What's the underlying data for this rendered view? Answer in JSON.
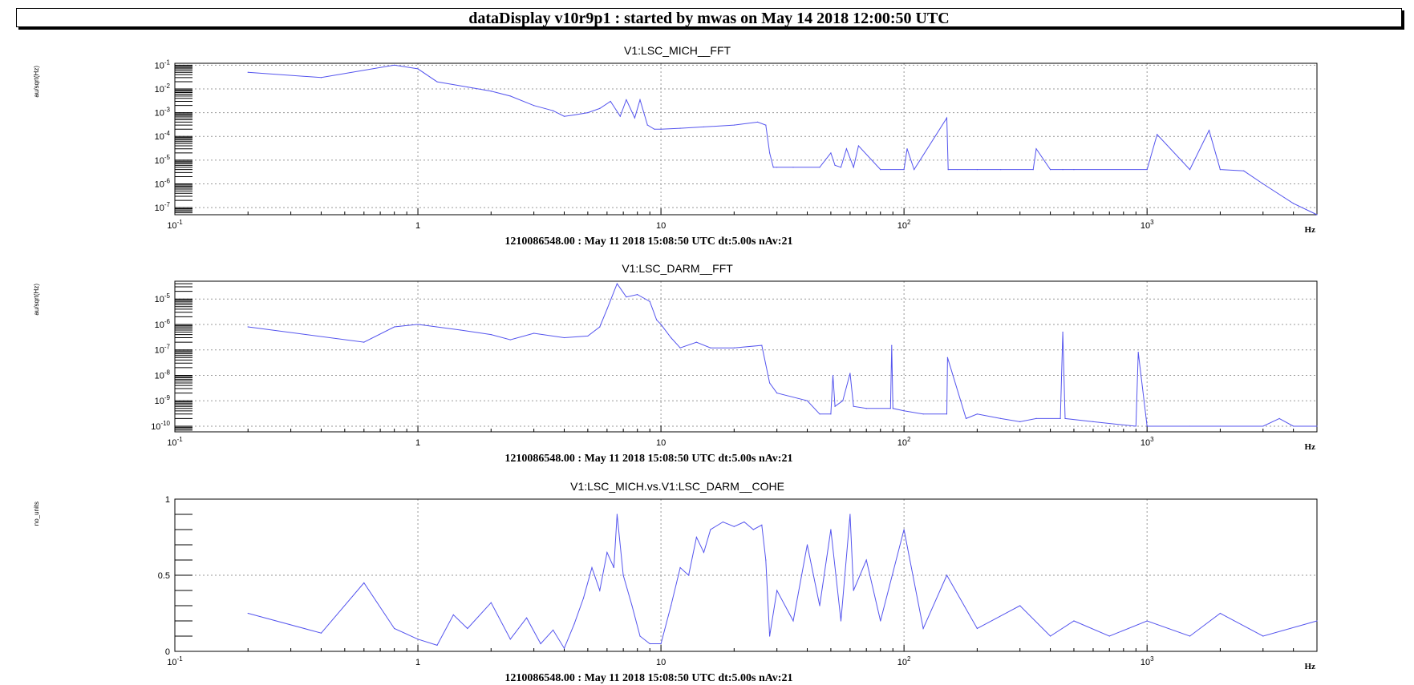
{
  "window": {
    "title": "dataDisplay v10r9p1 : started by mwas on May 14 2018 12:00:50 UTC"
  },
  "colors": {
    "trace": "#5555ee",
    "grid": "#999999",
    "axis": "#000000"
  },
  "chart_data": [
    {
      "type": "line",
      "title": "V1:LSC_MICH__FFT",
      "ylabel": "au/sqrt(Hz)",
      "xlabel": "Hz",
      "footer": "1210086548.00 : May 11 2018 15:08:50 UTC dt:5.00s nAv:21",
      "xscale": "log",
      "yscale": "log",
      "xlim": [
        0.1,
        5000
      ],
      "ylim": [
        5e-08,
        0.12
      ],
      "xticks": [
        {
          "base": "10",
          "exp": "-1"
        },
        {
          "label": "1"
        },
        {
          "label": "10"
        },
        {
          "base": "10",
          "exp": "2"
        },
        {
          "base": "10",
          "exp": "3"
        }
      ],
      "yticks": [
        {
          "base": "10",
          "exp": "-1"
        },
        {
          "base": "10",
          "exp": "-2"
        },
        {
          "base": "10",
          "exp": "-3"
        },
        {
          "base": "10",
          "exp": "-4"
        },
        {
          "base": "10",
          "exp": "-5"
        },
        {
          "base": "10",
          "exp": "-6"
        },
        {
          "base": "10",
          "exp": "-7"
        }
      ],
      "grid": true,
      "series": [
        {
          "x": [
            0.2,
            0.4,
            0.8,
            1.0,
            1.2,
            1.6,
            2.0,
            2.4,
            3.0,
            3.6,
            4.0,
            4.4,
            5.0,
            5.6,
            6.2,
            6.8,
            7.2,
            7.8,
            8.2,
            8.8,
            9.4,
            10,
            12,
            15,
            20,
            25,
            27,
            28,
            29,
            30,
            35,
            45,
            50,
            52,
            55,
            58,
            62,
            65,
            80,
            100,
            103,
            110,
            150,
            152,
            200,
            250,
            340,
            350,
            400,
            450,
            500,
            1000,
            1100,
            1500,
            1800,
            2000,
            2500,
            3000,
            4000,
            5000
          ],
          "y": [
            0.05,
            0.03,
            0.1,
            0.07,
            0.02,
            0.012,
            0.008,
            0.005,
            0.002,
            0.0012,
            0.0007,
            0.0008,
            0.001,
            0.0015,
            0.003,
            0.0007,
            0.0035,
            0.0006,
            0.0035,
            0.0003,
            0.0002,
            0.0002,
            0.00022,
            0.00025,
            0.0003,
            0.0004,
            0.0003,
            2e-05,
            5e-06,
            5e-06,
            5e-06,
            5e-06,
            2e-05,
            6e-06,
            5e-06,
            3e-05,
            5e-06,
            4e-05,
            4e-06,
            4e-06,
            3e-05,
            4e-06,
            0.0006,
            4e-06,
            4e-06,
            4e-06,
            4e-06,
            3e-05,
            4e-06,
            4e-06,
            4e-06,
            4e-06,
            0.00012,
            4e-06,
            0.00018,
            4e-06,
            3.5e-06,
            1e-06,
            1.5e-07,
            5e-08
          ]
        }
      ]
    },
    {
      "type": "line",
      "title": "V1:LSC_DARM__FFT",
      "ylabel": "au/sqrt(Hz)",
      "xlabel": "Hz",
      "footer": "1210086548.00 : May 11 2018 15:08:50 UTC dt:5.00s nAv:21",
      "xscale": "log",
      "yscale": "log",
      "xlim": [
        0.1,
        5000
      ],
      "ylim": [
        6e-11,
        5e-05
      ],
      "xticks": [
        {
          "base": "10",
          "exp": "-1"
        },
        {
          "label": "1"
        },
        {
          "label": "10"
        },
        {
          "base": "10",
          "exp": "2"
        },
        {
          "base": "10",
          "exp": "3"
        }
      ],
      "yticks": [
        {
          "base": "10",
          "exp": "-5"
        },
        {
          "base": "10",
          "exp": "-6"
        },
        {
          "base": "10",
          "exp": "-7"
        },
        {
          "base": "10",
          "exp": "-8"
        },
        {
          "base": "10",
          "exp": "-9"
        },
        {
          "base": "10",
          "exp": "-10"
        }
      ],
      "grid": true,
      "series": [
        {
          "x": [
            0.2,
            0.6,
            0.8,
            1.0,
            1.5,
            2.0,
            2.4,
            3.0,
            4.0,
            5.0,
            5.6,
            6.0,
            6.6,
            7.2,
            8.0,
            9.0,
            9.6,
            10,
            11,
            12,
            14,
            16,
            20,
            26,
            28,
            30,
            40,
            45,
            50,
            51,
            52,
            56,
            60,
            62,
            70,
            88,
            89,
            90,
            100,
            120,
            150,
            151,
            180,
            200,
            250,
            300,
            350,
            440,
            450,
            460,
            600,
            900,
            920,
            1000,
            1500,
            2000,
            3000,
            3500,
            4000,
            5000
          ],
          "y": [
            8e-07,
            2e-07,
            8e-07,
            1e-06,
            6e-07,
            4e-07,
            2.5e-07,
            4.5e-07,
            3e-07,
            3.5e-07,
            8e-07,
            4e-06,
            4e-05,
            1.2e-05,
            1.5e-05,
            8e-06,
            1.5e-06,
            1e-06,
            3e-07,
            1.2e-07,
            2e-07,
            1.2e-07,
            1.2e-07,
            1.5e-07,
            5e-09,
            2e-09,
            1e-09,
            3e-10,
            3e-10,
            1e-08,
            6e-10,
            1e-09,
            1.2e-08,
            6e-10,
            5e-10,
            5e-10,
            1.5e-07,
            5e-10,
            4e-10,
            3e-10,
            3e-10,
            5e-08,
            2e-10,
            3e-10,
            2e-10,
            1.5e-10,
            2e-10,
            2e-10,
            5e-07,
            2e-10,
            1.5e-10,
            1e-10,
            8e-08,
            1e-10,
            1e-10,
            1e-10,
            1e-10,
            2e-10,
            1e-10,
            1e-10
          ]
        }
      ]
    },
    {
      "type": "line",
      "title": "V1:LSC_MICH.vs.V1:LSC_DARM__COHE",
      "ylabel": "no_units",
      "xlabel": "Hz",
      "footer": "1210086548.00 : May 11 2018 15:08:50 UTC dt:5.00s nAv:21",
      "xscale": "log",
      "yscale": "linear",
      "xlim": [
        0.1,
        5000
      ],
      "ylim": [
        0,
        1
      ],
      "xticks": [
        {
          "base": "10",
          "exp": "-1"
        },
        {
          "label": "1"
        },
        {
          "label": "10"
        },
        {
          "base": "10",
          "exp": "2"
        },
        {
          "base": "10",
          "exp": "3"
        }
      ],
      "yticks": [
        {
          "label": "1"
        },
        {
          "label": "0.5"
        },
        {
          "label": "0"
        }
      ],
      "grid": true,
      "series": [
        {
          "x": [
            0.2,
            0.4,
            0.6,
            0.8,
            1.0,
            1.2,
            1.4,
            1.6,
            2.0,
            2.4,
            2.8,
            3.2,
            3.6,
            4.0,
            4.4,
            4.8,
            5.2,
            5.6,
            6.0,
            6.4,
            6.6,
            7.0,
            7.6,
            8.2,
            9.0,
            10,
            11,
            12,
            13,
            14,
            15,
            16,
            18,
            20,
            22,
            24,
            26,
            27,
            28,
            30,
            35,
            40,
            45,
            50,
            55,
            60,
            62,
            70,
            80,
            100,
            120,
            150,
            200,
            300,
            400,
            500,
            700,
            1000,
            1500,
            2000,
            3000,
            5000
          ],
          "y": [
            0.25,
            0.12,
            0.45,
            0.15,
            0.08,
            0.04,
            0.24,
            0.15,
            0.32,
            0.08,
            0.22,
            0.05,
            0.14,
            0.02,
            0.18,
            0.35,
            0.55,
            0.4,
            0.65,
            0.55,
            0.9,
            0.5,
            0.3,
            0.1,
            0.05,
            0.05,
            0.3,
            0.55,
            0.5,
            0.75,
            0.65,
            0.8,
            0.85,
            0.82,
            0.85,
            0.8,
            0.83,
            0.6,
            0.1,
            0.4,
            0.2,
            0.7,
            0.3,
            0.8,
            0.2,
            0.9,
            0.4,
            0.6,
            0.2,
            0.8,
            0.15,
            0.5,
            0.15,
            0.3,
            0.1,
            0.2,
            0.1,
            0.2,
            0.1,
            0.25,
            0.1,
            0.2
          ]
        }
      ]
    }
  ]
}
